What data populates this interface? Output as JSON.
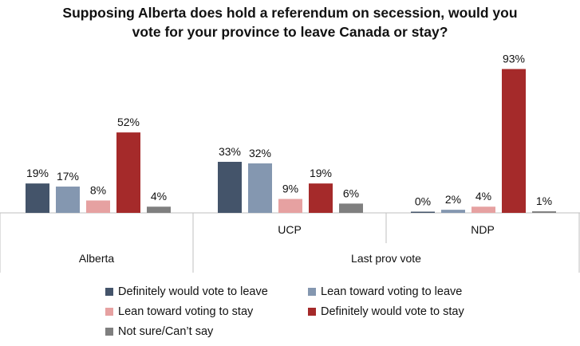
{
  "chart_data": {
    "type": "bar",
    "title_lines": [
      "Supposing Alberta does hold a referendum on secession, would you",
      "vote for your province to leave Canada or stay?"
    ],
    "categories": [
      "Alberta",
      "UCP",
      "NDP"
    ],
    "group_label": "Last prov vote",
    "ylim": [
      0,
      100
    ],
    "grid": false,
    "legend_position": "bottom",
    "series": [
      {
        "name": "Definitely would vote to leave",
        "color": "#44546a",
        "values": [
          19,
          33,
          0
        ],
        "labels": [
          "19%",
          "33%",
          "0%"
        ]
      },
      {
        "name": "Lean toward voting to leave",
        "color": "#8497b0",
        "values": [
          17,
          32,
          2
        ],
        "labels": [
          "17%",
          "32%",
          "2%"
        ]
      },
      {
        "name": "Lean toward voting to stay",
        "color": "#e6a1a1",
        "values": [
          8,
          9,
          4
        ],
        "labels": [
          "8%",
          "9%",
          "4%"
        ]
      },
      {
        "name": "Definitely would vote to stay",
        "color": "#a52a2a",
        "values": [
          52,
          19,
          93
        ],
        "labels": [
          "52%",
          "19%",
          "93%"
        ]
      },
      {
        "name": "Not sure/Can’t say",
        "color": "#7f7f7f",
        "values": [
          4,
          6,
          1
        ],
        "labels": [
          "4%",
          "6%",
          "1%"
        ]
      }
    ]
  }
}
